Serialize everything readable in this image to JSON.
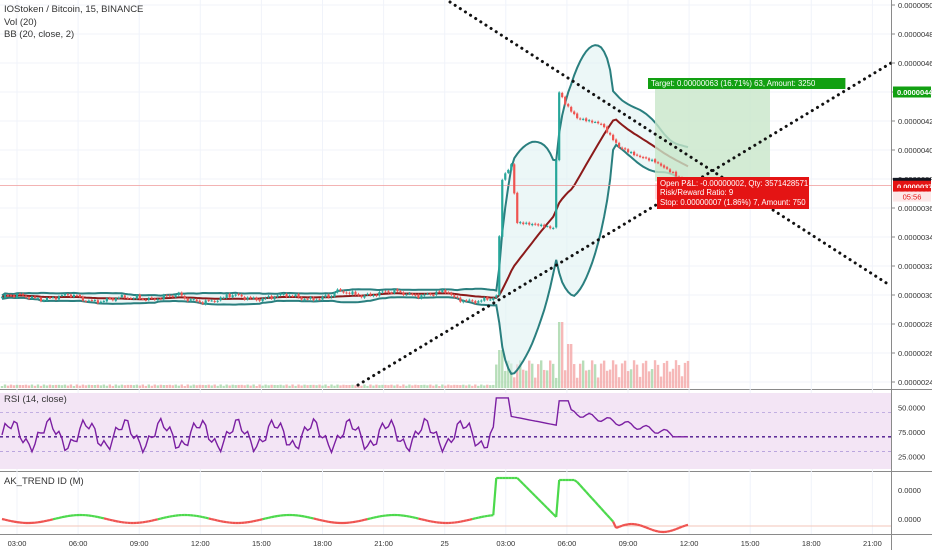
{
  "header": {
    "symbol_line": "IOStoken / Bitcoin, 15, BINANCE",
    "study_vol": "Vol (20)",
    "study_bb": "BB (20, close, 2)"
  },
  "rsi_panel": {
    "title": "RSI (14, close)"
  },
  "trend_panel": {
    "title": "AK_TREND ID (M)"
  },
  "colors": {
    "bull": "#26a69a",
    "bear": "#ef5350",
    "bb_band": "#2a7f7f",
    "bb_mid": "#8b1a1a",
    "rsi_line": "#7b1fa2",
    "target_green": "#12a012",
    "stop_red": "#e41414"
  },
  "chart_data": [
    {
      "type": "candlestick",
      "title": "IOStoken / Bitcoin, 15, BINANCE",
      "y_axis": {
        "ticks": [
          "0.00000500",
          "0.00000480",
          "0.00000460",
          "0.00000440",
          "0.00000420",
          "0.00000400",
          "0.00000380",
          "0.00000360",
          "0.00000340",
          "0.00000320",
          "0.00000300",
          "0.00000280",
          "0.00000260",
          "0.00000240"
        ],
        "ylim": [
          2.37e-06,
          5.03e-06
        ]
      },
      "x_axis": {
        "ticks": [
          "03:00",
          "06:00",
          "09:00",
          "12:00",
          "15:00",
          "18:00",
          "21:00",
          "25",
          "03:00",
          "06:00",
          "09:00",
          "12:00",
          "15:00",
          "18:00",
          "21:00"
        ]
      },
      "price_labels": [
        {
          "text": "0.00000440",
          "value": 4.4e-06,
          "color": "#12a012"
        },
        {
          "text": "0.00000377",
          "value": 3.77e-06,
          "color": "#131722"
        },
        {
          "text": "0.00000375",
          "value": 3.75e-06,
          "color": "#e41414"
        },
        {
          "text": "0.00000370",
          "value": 3.7e-06,
          "color": "#e41414"
        }
      ],
      "countdown": "05:56",
      "position_labels": {
        "target": "Target: 0.00000063 (16.71%) 63, Amount: 3250",
        "open_pl": "Open P&L: -0.00000002, Qty: 3571428571",
        "ratio": "Risk/Reward Ratio: 9",
        "stop": "Stop: 0.00000007 (1.86%) 7, Amount: 750"
      }
    },
    {
      "type": "line",
      "title": "RSI (14, close)",
      "ticks": [
        "75.0000",
        "50.0000",
        "25.0000"
      ],
      "ylim": [
        12,
        90
      ],
      "levels": [
        70,
        45,
        30
      ]
    },
    {
      "type": "line",
      "title": "AK_TREND ID (M)",
      "ticks": [
        "0.0000",
        "0.0000"
      ]
    }
  ]
}
